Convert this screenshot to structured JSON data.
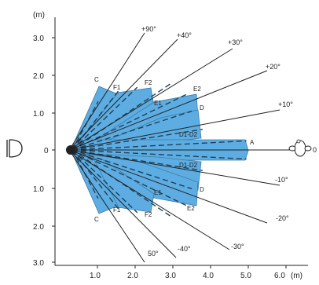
{
  "diagram": {
    "title": "",
    "unit_label": "(m)",
    "x_axis": {
      "ticks": [
        "1.0",
        "2.0",
        "3.0",
        "4.0",
        "5.0",
        "6.0"
      ],
      "unit": "(m)"
    },
    "y_axis": {
      "ticks_upper": [
        "3.0",
        "2.0",
        "1.0"
      ],
      "center": "0",
      "ticks_lower": [
        "1.0",
        "2.0",
        "3.0"
      ]
    },
    "angle_labels": {
      "pos90": "+90°",
      "pos40": "+40°",
      "pos30": "+30°",
      "pos20": "+20°",
      "pos10": "+10°",
      "neg10": "-10°",
      "neg20": "-20°",
      "neg30": "-30°",
      "neg40": "-40°",
      "neg50": "50°"
    },
    "zone_labels": {
      "upper": [
        "C",
        "F1",
        "F2",
        "E1",
        "E2",
        "D",
        "D1-D2"
      ],
      "center": "A",
      "lower": [
        "D1-D2",
        "D",
        "E1",
        "E2",
        "F2",
        "F1",
        "C"
      ]
    },
    "target_label": "0",
    "colors": {
      "zone_fill": "#5dade2",
      "line": "#222222",
      "zone_outline": "#3a7ca5"
    },
    "icons": {
      "sensor": "dome-sensor-icon",
      "target": "person-head-icon"
    }
  }
}
